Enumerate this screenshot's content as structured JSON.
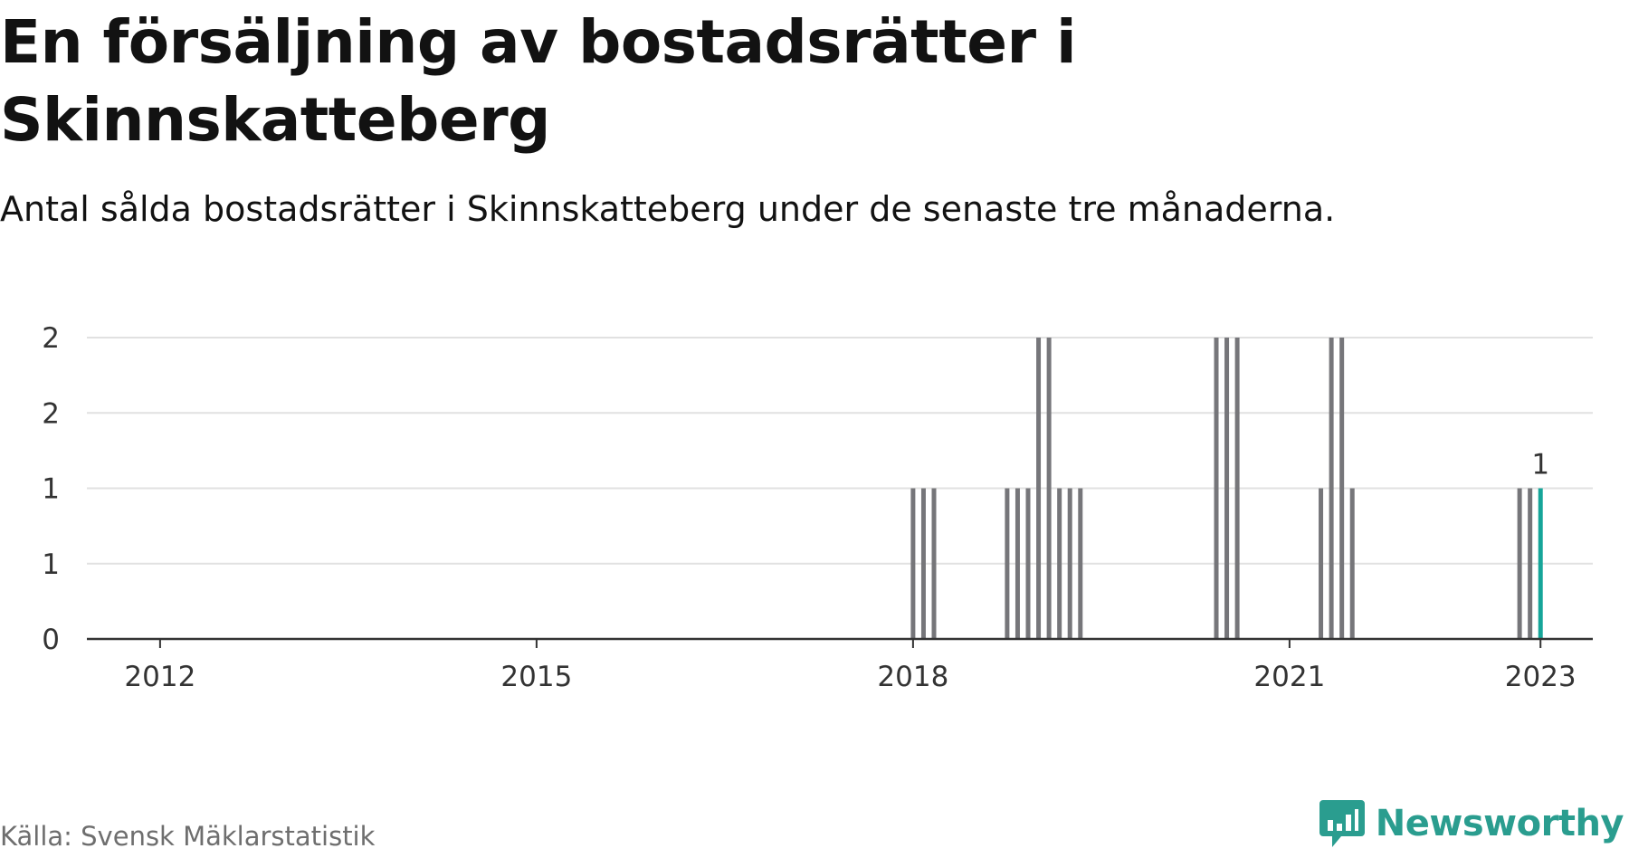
{
  "title": "En försäljning av bostadsrätter i Skinnskatteberg",
  "subtitle": "Antal sålda bostadsrätter i Skinnskatteberg under de senaste tre månaderna.",
  "source": "Källa: Svensk Mäklarstatistik",
  "brand": {
    "name": "Newsworthy",
    "icon": "newsworthy-logo-icon"
  },
  "colors": {
    "bar": "#76767a",
    "highlight": "#16a599",
    "grid": "#e1e1e1",
    "axis": "#333333",
    "brand": "#2a9d8f"
  },
  "chart_data": {
    "type": "bar",
    "title": "En försäljning av bostadsrätter i Skinnskatteberg",
    "subtitle": "Antal sålda bostadsrätter i Skinnskatteberg under de senaste tre månaderna.",
    "xlabel": "",
    "ylabel": "",
    "x_domain": [
      "2011-06",
      "2023-06"
    ],
    "ylim": [
      0,
      2
    ],
    "y_ticks": [
      0,
      0.5,
      1,
      1.5,
      2
    ],
    "y_tick_labels": [
      "0",
      "1",
      "1",
      "2",
      "2"
    ],
    "x_ticks": [
      "2012-01",
      "2015-01",
      "2018-01",
      "2021-01",
      "2023-01"
    ],
    "x_tick_labels": [
      "2012",
      "2015",
      "2018",
      "2021",
      "2023"
    ],
    "grid": true,
    "series": [
      {
        "values": [
          {
            "x": "2018-01",
            "y": 1
          },
          {
            "x": "2018-02",
            "y": 1
          },
          {
            "x": "2018-03",
            "y": 1
          },
          {
            "x": "2018-10",
            "y": 1
          },
          {
            "x": "2018-11",
            "y": 1
          },
          {
            "x": "2018-12",
            "y": 1
          },
          {
            "x": "2019-01",
            "y": 2
          },
          {
            "x": "2019-02",
            "y": 2
          },
          {
            "x": "2019-03",
            "y": 1
          },
          {
            "x": "2019-04",
            "y": 1
          },
          {
            "x": "2019-05",
            "y": 1
          },
          {
            "x": "2020-06",
            "y": 2
          },
          {
            "x": "2020-07",
            "y": 2
          },
          {
            "x": "2020-08",
            "y": 2
          },
          {
            "x": "2021-04",
            "y": 1
          },
          {
            "x": "2021-05",
            "y": 2
          },
          {
            "x": "2021-06",
            "y": 2
          },
          {
            "x": "2021-07",
            "y": 1
          },
          {
            "x": "2022-11",
            "y": 1
          },
          {
            "x": "2022-12",
            "y": 1
          },
          {
            "x": "2023-01",
            "y": 1
          }
        ]
      }
    ],
    "highlight": {
      "x": "2023-01",
      "y": 1,
      "label": "1"
    }
  }
}
